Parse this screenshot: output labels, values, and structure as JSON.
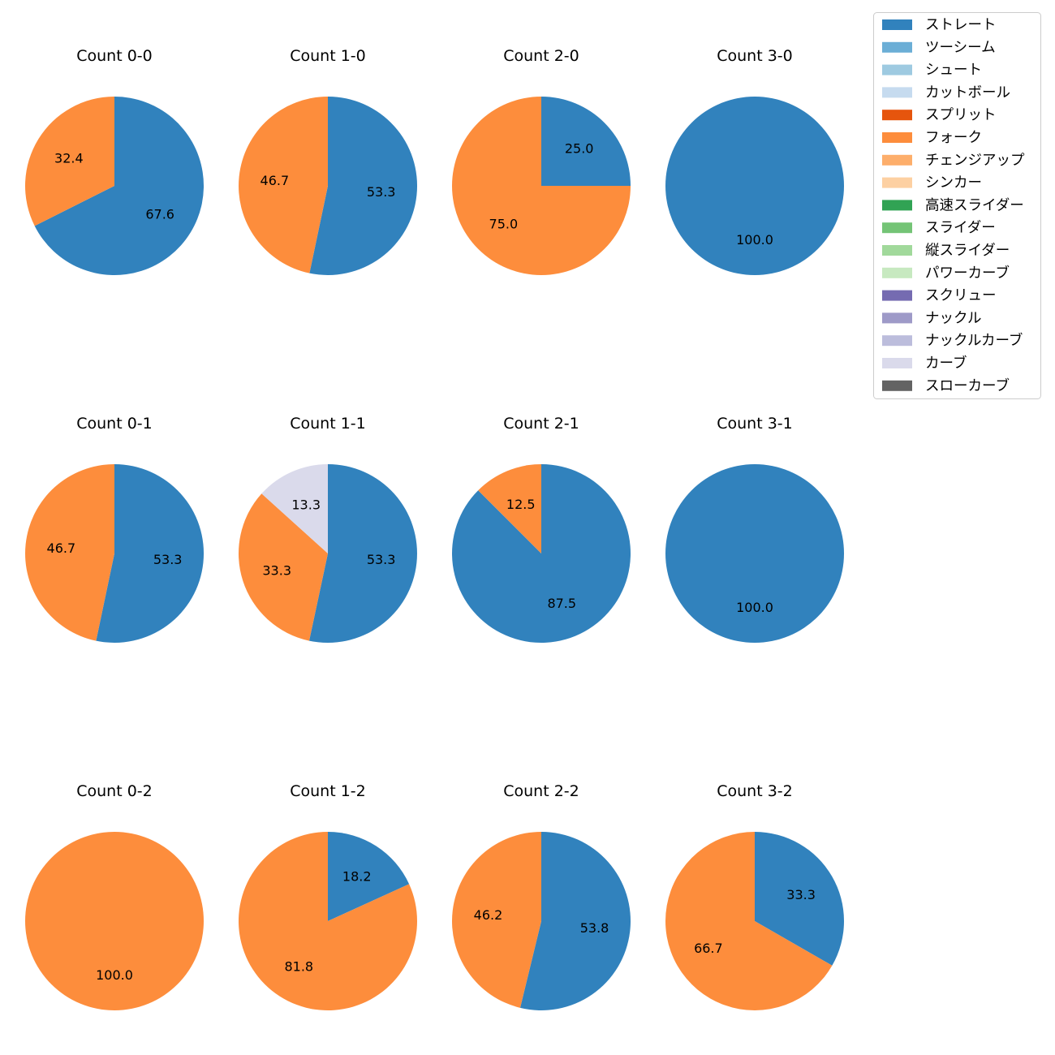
{
  "colors": {
    "ストレート": "#3182bd",
    "ツーシーム": "#6baed6",
    "シュート": "#9ecae1",
    "カットボール": "#c6dbef",
    "スプリット": "#e6550d",
    "フォーク": "#fd8d3c",
    "チェンジアップ": "#fdae6b",
    "シンカー": "#fdd0a2",
    "高速スライダー": "#31a354",
    "スライダー": "#74c476",
    "縦スライダー": "#a1d99b",
    "パワーカーブ": "#c7e9c0",
    "スクリュー": "#756bb1",
    "ナックル": "#9e9ac8",
    "ナックルカーブ": "#bcbddc",
    "カーブ": "#dadaeb",
    "スローカーブ": "#636363"
  },
  "legend": {
    "items": [
      "ストレート",
      "ツーシーム",
      "シュート",
      "カットボール",
      "スプリット",
      "フォーク",
      "チェンジアップ",
      "シンカー",
      "高速スライダー",
      "スライダー",
      "縦スライダー",
      "パワーカーブ",
      "スクリュー",
      "ナックル",
      "ナックルカーブ",
      "カーブ",
      "スローカーブ"
    ]
  },
  "chart_data": [
    {
      "type": "pie",
      "title": "Count 0-0",
      "slices": [
        {
          "label": "ストレート",
          "value": 67.6
        },
        {
          "label": "フォーク",
          "value": 32.4
        }
      ]
    },
    {
      "type": "pie",
      "title": "Count 1-0",
      "slices": [
        {
          "label": "ストレート",
          "value": 53.3
        },
        {
          "label": "フォーク",
          "value": 46.7
        }
      ]
    },
    {
      "type": "pie",
      "title": "Count 2-0",
      "slices": [
        {
          "label": "ストレート",
          "value": 25.0
        },
        {
          "label": "フォーク",
          "value": 75.0
        }
      ]
    },
    {
      "type": "pie",
      "title": "Count 3-0",
      "slices": [
        {
          "label": "ストレート",
          "value": 100.0
        }
      ]
    },
    {
      "type": "pie",
      "title": "Count 0-1",
      "slices": [
        {
          "label": "ストレート",
          "value": 53.3
        },
        {
          "label": "フォーク",
          "value": 46.7
        }
      ]
    },
    {
      "type": "pie",
      "title": "Count 1-1",
      "slices": [
        {
          "label": "ストレート",
          "value": 53.3
        },
        {
          "label": "フォーク",
          "value": 33.3
        },
        {
          "label": "カーブ",
          "value": 13.3
        }
      ]
    },
    {
      "type": "pie",
      "title": "Count 2-1",
      "slices": [
        {
          "label": "ストレート",
          "value": 87.5
        },
        {
          "label": "フォーク",
          "value": 12.5
        }
      ]
    },
    {
      "type": "pie",
      "title": "Count 3-1",
      "slices": [
        {
          "label": "ストレート",
          "value": 100.0
        }
      ]
    },
    {
      "type": "pie",
      "title": "Count 0-2",
      "slices": [
        {
          "label": "フォーク",
          "value": 100.0
        }
      ]
    },
    {
      "type": "pie",
      "title": "Count 1-2",
      "slices": [
        {
          "label": "ストレート",
          "value": 18.2
        },
        {
          "label": "フォーク",
          "value": 81.8
        }
      ]
    },
    {
      "type": "pie",
      "title": "Count 2-2",
      "slices": [
        {
          "label": "ストレート",
          "value": 53.8
        },
        {
          "label": "フォーク",
          "value": 46.2
        }
      ]
    },
    {
      "type": "pie",
      "title": "Count 3-2",
      "slices": [
        {
          "label": "ストレート",
          "value": 33.3
        },
        {
          "label": "フォーク",
          "value": 66.7
        }
      ]
    }
  ]
}
